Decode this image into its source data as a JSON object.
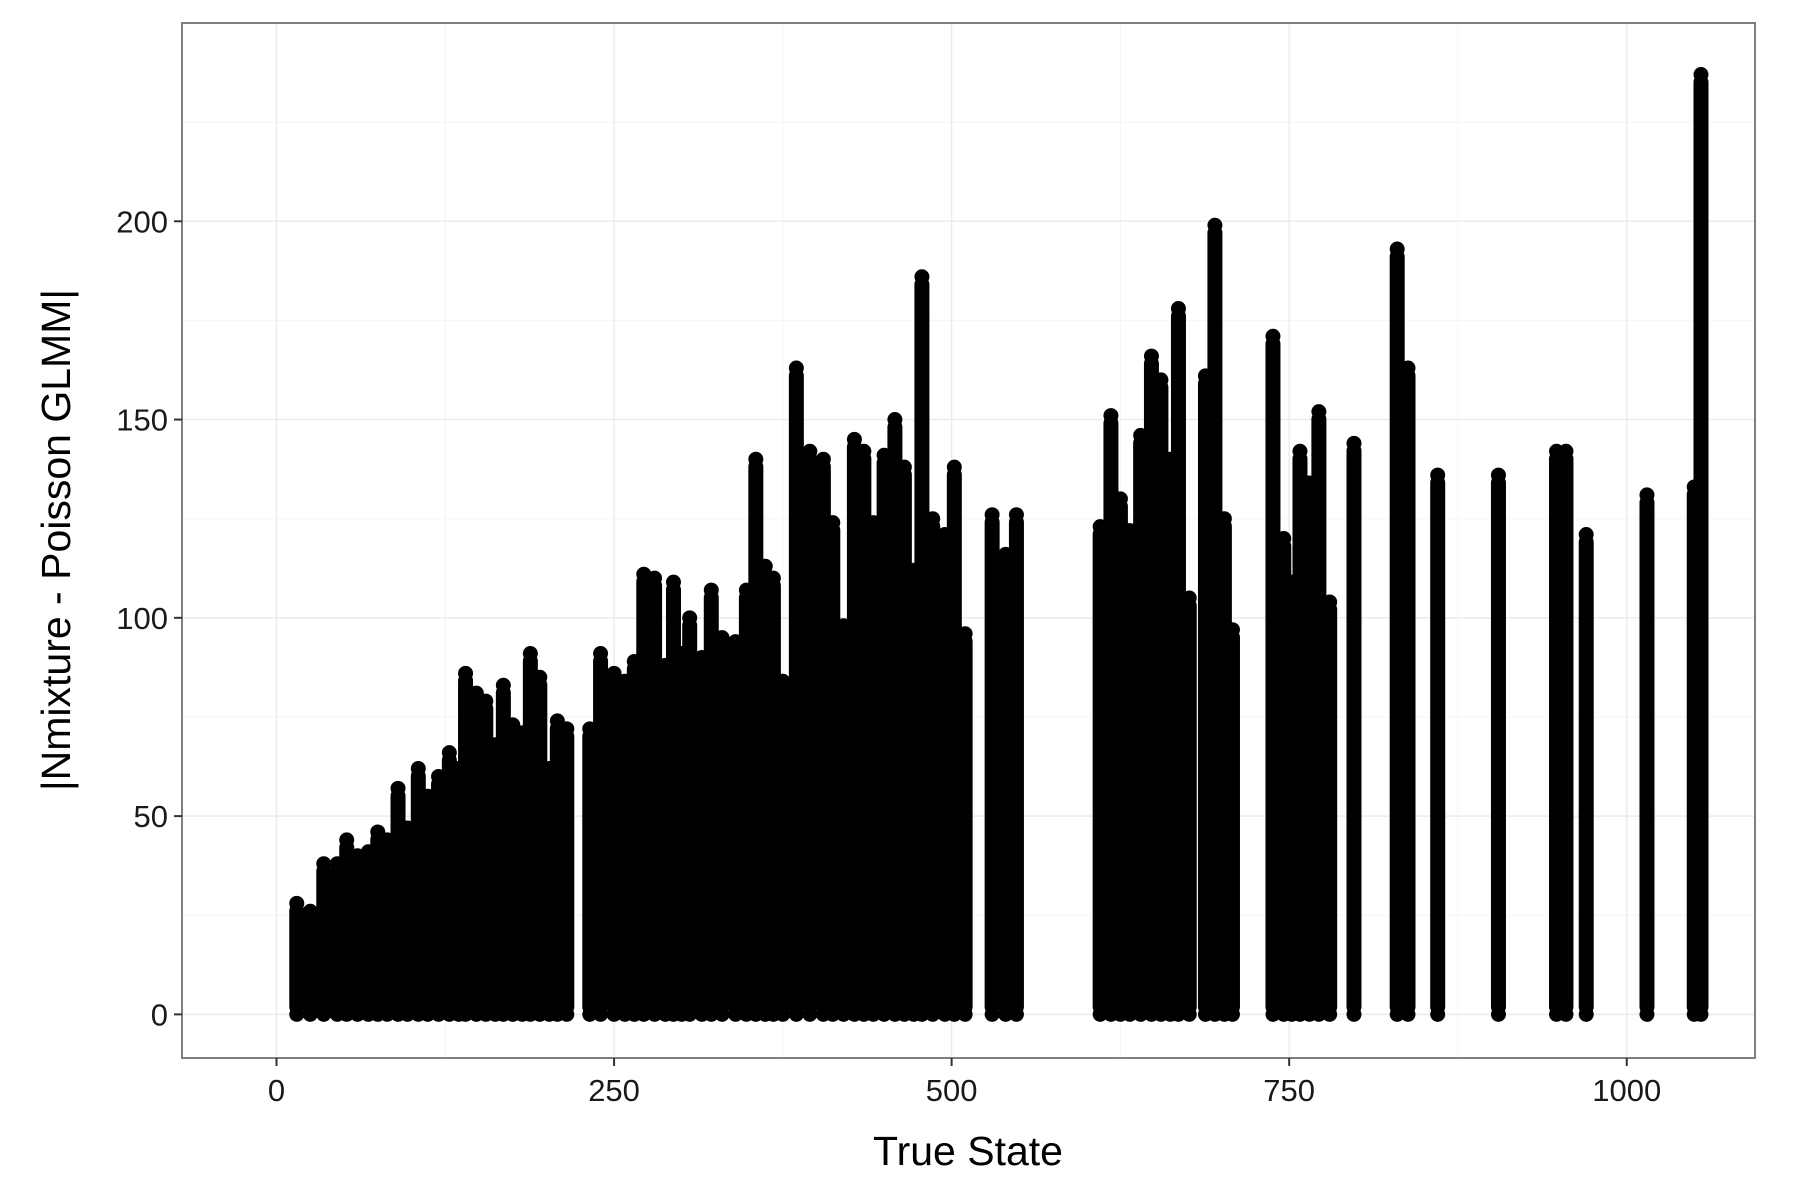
{
  "chart_data": {
    "type": "scatter",
    "xlabel": "True State",
    "ylabel": "|Nmixture - Poisson GLMM|",
    "xlim": [
      -70,
      1095
    ],
    "ylim": [
      -11,
      250
    ],
    "x_ticks": [
      0,
      250,
      500,
      750,
      1000
    ],
    "x_tick_labels": [
      "0",
      "250",
      "500",
      "750",
      "1000"
    ],
    "y_ticks": [
      0,
      50,
      100,
      150,
      200
    ],
    "y_tick_labels": [
      "0",
      "50",
      "100",
      "150",
      "200"
    ],
    "grid": true,
    "point_color": "#000000",
    "grid_color": "#ebebeb",
    "columns": [
      {
        "x": 15,
        "max": 28
      },
      {
        "x": 25,
        "max": 26
      },
      {
        "x": 35,
        "max": 38
      },
      {
        "x": 45,
        "max": 38
      },
      {
        "x": 52,
        "max": 44
      },
      {
        "x": 60,
        "max": 40
      },
      {
        "x": 68,
        "max": 41
      },
      {
        "x": 75,
        "max": 46
      },
      {
        "x": 82,
        "max": 44
      },
      {
        "x": 90,
        "max": 57
      },
      {
        "x": 97,
        "max": 47
      },
      {
        "x": 105,
        "max": 62
      },
      {
        "x": 112,
        "max": 55
      },
      {
        "x": 120,
        "max": 60
      },
      {
        "x": 128,
        "max": 66
      },
      {
        "x": 135,
        "max": 62
      },
      {
        "x": 140,
        "max": 86
      },
      {
        "x": 148,
        "max": 81
      },
      {
        "x": 155,
        "max": 79
      },
      {
        "x": 162,
        "max": 68
      },
      {
        "x": 168,
        "max": 83
      },
      {
        "x": 175,
        "max": 73
      },
      {
        "x": 182,
        "max": 71
      },
      {
        "x": 188,
        "max": 91
      },
      {
        "x": 195,
        "max": 85
      },
      {
        "x": 202,
        "max": 62
      },
      {
        "x": 208,
        "max": 74
      },
      {
        "x": 215,
        "max": 72
      },
      {
        "x": 232,
        "max": 72
      },
      {
        "x": 240,
        "max": 91
      },
      {
        "x": 250,
        "max": 86
      },
      {
        "x": 258,
        "max": 84
      },
      {
        "x": 265,
        "max": 89
      },
      {
        "x": 272,
        "max": 111
      },
      {
        "x": 280,
        "max": 110
      },
      {
        "x": 288,
        "max": 88
      },
      {
        "x": 294,
        "max": 109
      },
      {
        "x": 300,
        "max": 91
      },
      {
        "x": 306,
        "max": 100
      },
      {
        "x": 315,
        "max": 90
      },
      {
        "x": 322,
        "max": 107
      },
      {
        "x": 330,
        "max": 95
      },
      {
        "x": 340,
        "max": 94
      },
      {
        "x": 348,
        "max": 107
      },
      {
        "x": 355,
        "max": 140
      },
      {
        "x": 362,
        "max": 113
      },
      {
        "x": 368,
        "max": 110
      },
      {
        "x": 375,
        "max": 84
      },
      {
        "x": 385,
        "max": 163
      },
      {
        "x": 395,
        "max": 142
      },
      {
        "x": 405,
        "max": 140
      },
      {
        "x": 412,
        "max": 124
      },
      {
        "x": 420,
        "max": 98
      },
      {
        "x": 428,
        "max": 145
      },
      {
        "x": 435,
        "max": 142
      },
      {
        "x": 442,
        "max": 124
      },
      {
        "x": 450,
        "max": 141
      },
      {
        "x": 458,
        "max": 150
      },
      {
        "x": 465,
        "max": 138
      },
      {
        "x": 472,
        "max": 112
      },
      {
        "x": 478,
        "max": 186
      },
      {
        "x": 486,
        "max": 125
      },
      {
        "x": 495,
        "max": 121
      },
      {
        "x": 502,
        "max": 138
      },
      {
        "x": 510,
        "max": 96
      },
      {
        "x": 530,
        "max": 126
      },
      {
        "x": 540,
        "max": 116
      },
      {
        "x": 548,
        "max": 126
      },
      {
        "x": 610,
        "max": 123
      },
      {
        "x": 618,
        "max": 151
      },
      {
        "x": 625,
        "max": 130
      },
      {
        "x": 632,
        "max": 122
      },
      {
        "x": 640,
        "max": 146
      },
      {
        "x": 648,
        "max": 166
      },
      {
        "x": 655,
        "max": 160
      },
      {
        "x": 662,
        "max": 140
      },
      {
        "x": 668,
        "max": 178
      },
      {
        "x": 676,
        "max": 105
      },
      {
        "x": 688,
        "max": 161
      },
      {
        "x": 695,
        "max": 199
      },
      {
        "x": 702,
        "max": 125
      },
      {
        "x": 708,
        "max": 97
      },
      {
        "x": 738,
        "max": 171
      },
      {
        "x": 746,
        "max": 120
      },
      {
        "x": 752,
        "max": 109
      },
      {
        "x": 758,
        "max": 142
      },
      {
        "x": 765,
        "max": 134
      },
      {
        "x": 772,
        "max": 152
      },
      {
        "x": 780,
        "max": 104
      },
      {
        "x": 798,
        "max": 144
      },
      {
        "x": 830,
        "max": 193
      },
      {
        "x": 838,
        "max": 163
      },
      {
        "x": 860,
        "max": 136
      },
      {
        "x": 905,
        "max": 136
      },
      {
        "x": 948,
        "max": 142
      },
      {
        "x": 955,
        "max": 142
      },
      {
        "x": 970,
        "max": 121
      },
      {
        "x": 1015,
        "max": 131
      },
      {
        "x": 1050,
        "max": 133
      },
      {
        "x": 1055,
        "max": 237
      }
    ]
  }
}
